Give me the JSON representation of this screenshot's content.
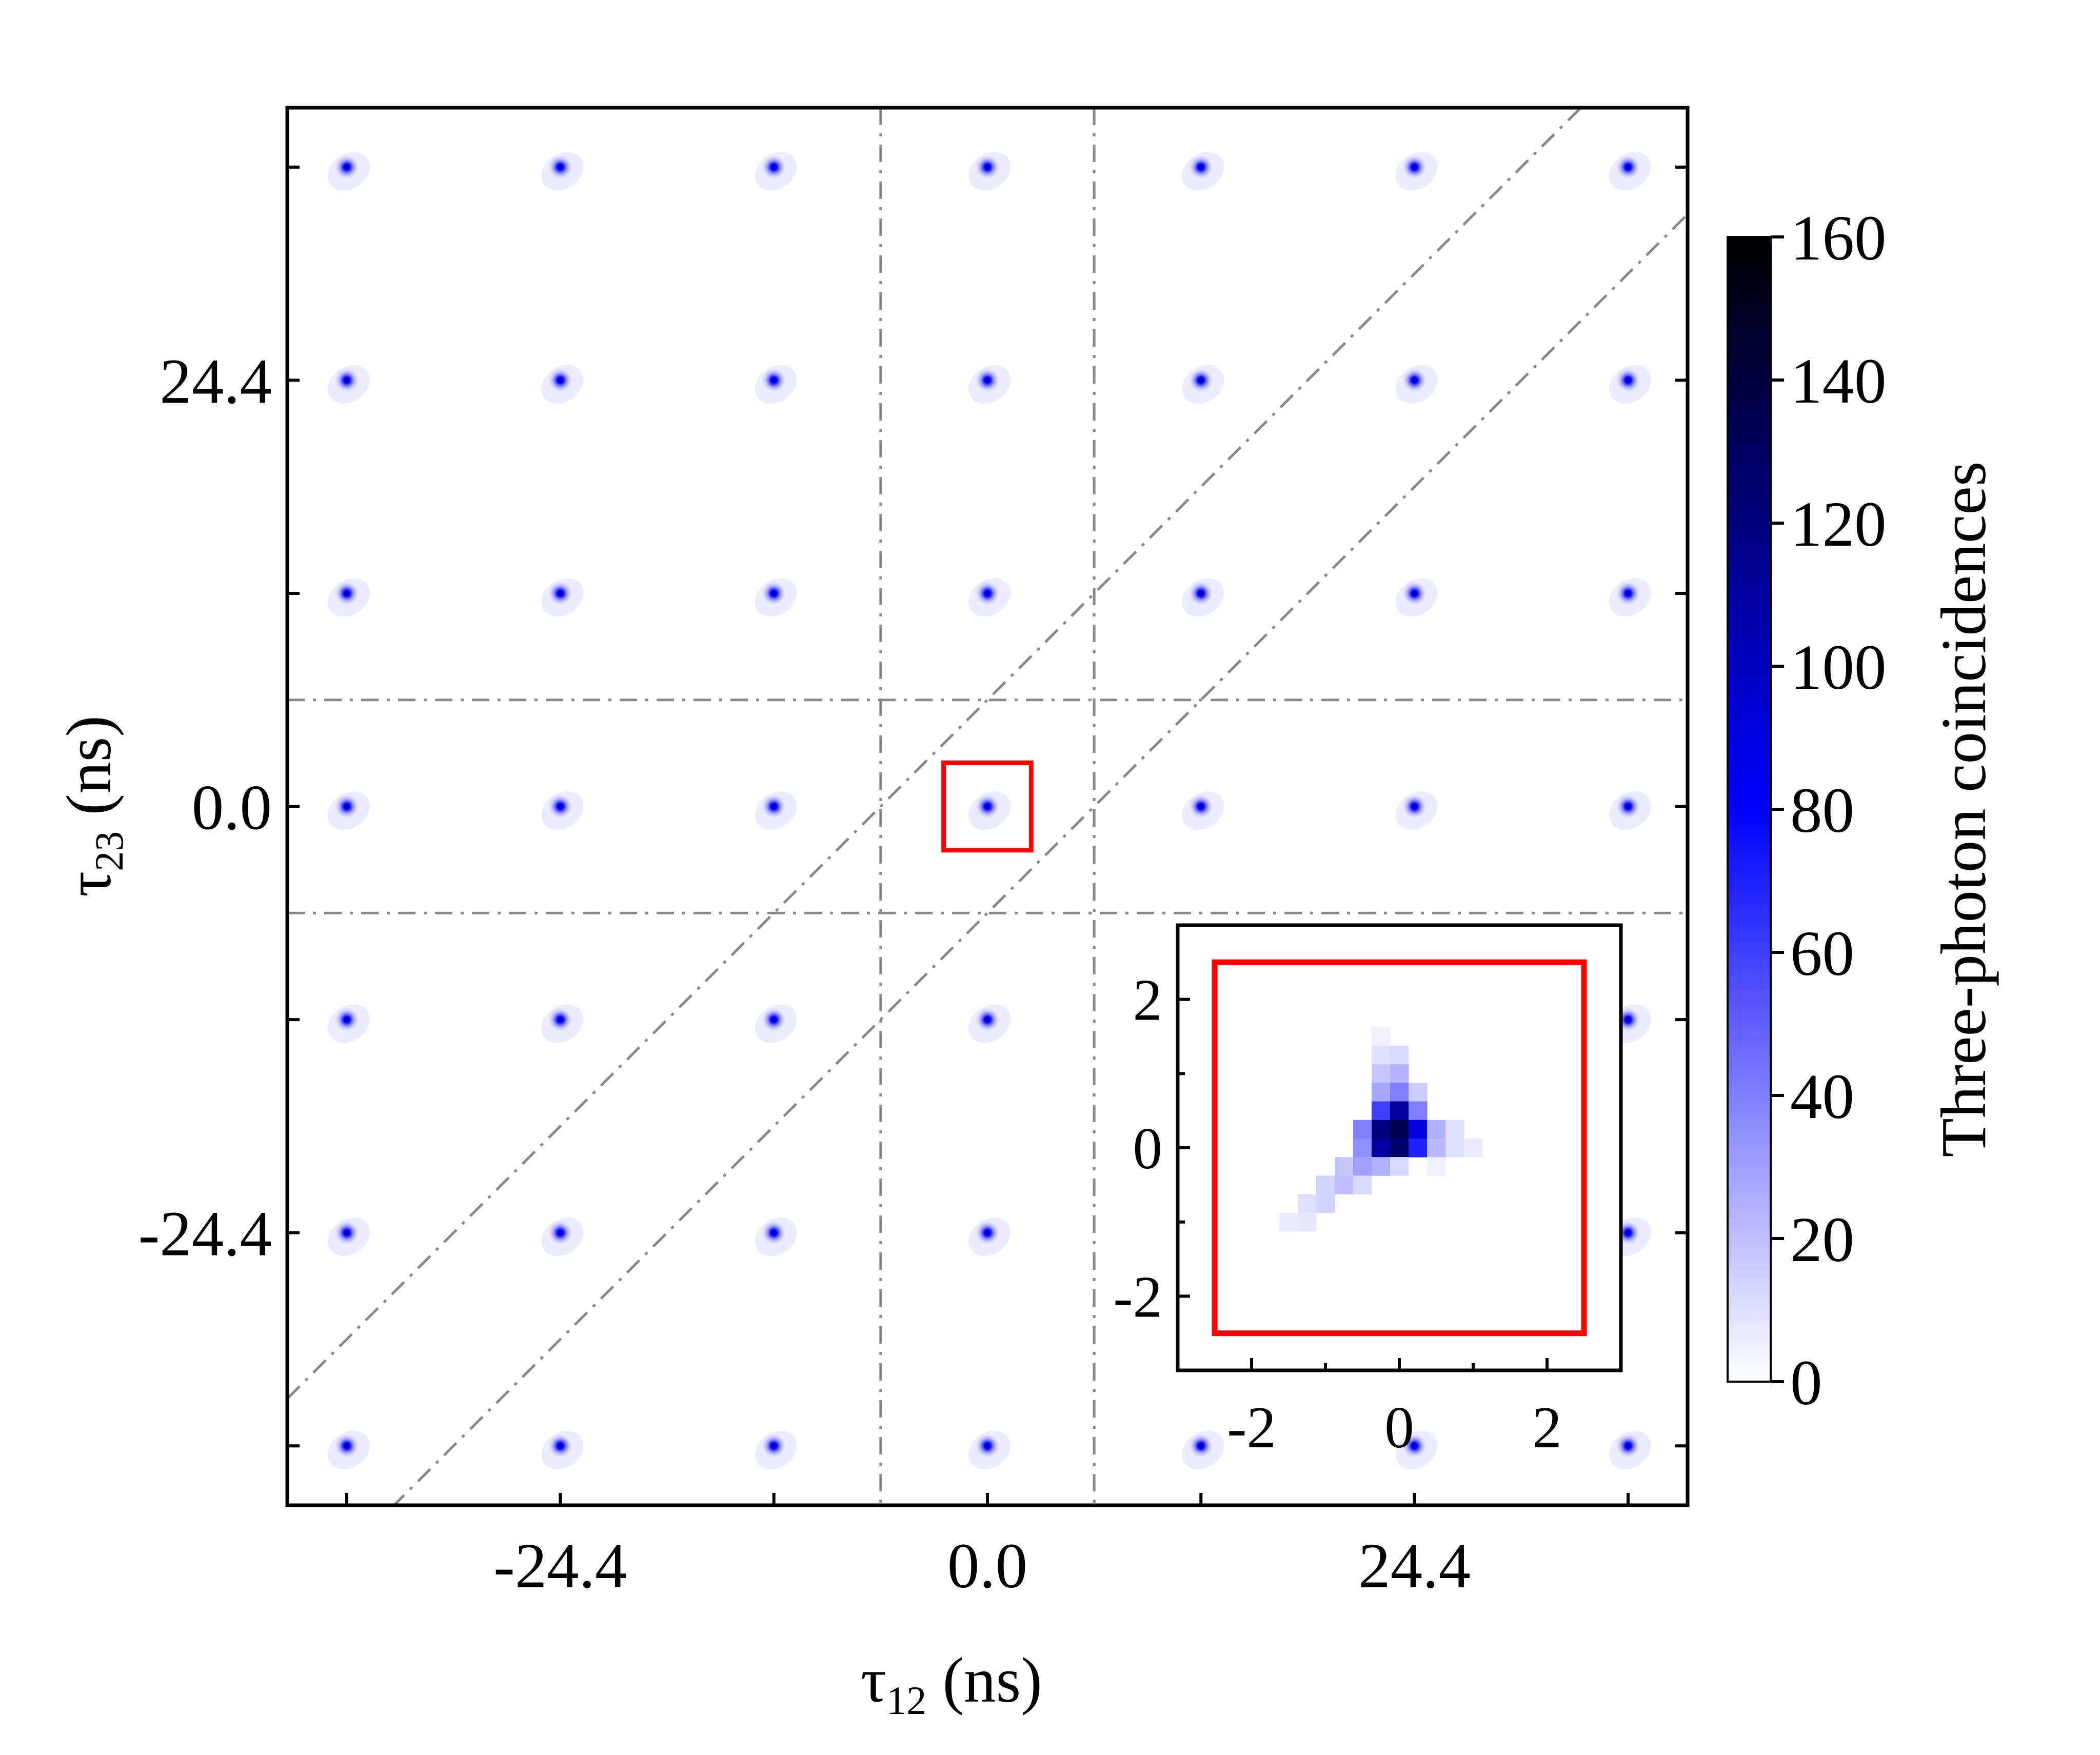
{
  "chart_data": {
    "type": "heatmap",
    "title": "",
    "xlabel": {
      "symbol": "τ",
      "subscript": "12",
      "unit": " (ns)"
    },
    "ylabel": {
      "symbol": "τ",
      "subscript": "23",
      "unit": " (ns)"
    },
    "x_ticks": [
      -24.4,
      0.0,
      24.4
    ],
    "x_tick_labels": [
      "-24.4",
      "0.0",
      "24.4"
    ],
    "y_ticks": [
      -24.4,
      0.0,
      24.4
    ],
    "y_tick_labels": [
      "-24.4",
      "0.0",
      "24.4"
    ],
    "xlim": [
      -40,
      40
    ],
    "ylim": [
      -40,
      40
    ],
    "peak_grid_period": 12.2,
    "peaks_x": [
      -36.6,
      -24.4,
      -12.2,
      0.0,
      12.2,
      24.4,
      36.6
    ],
    "peaks_y": [
      -36.6,
      -24.4,
      -12.2,
      0.0,
      12.2,
      24.4,
      36.6
    ],
    "guide_lines": {
      "vertical_x": [
        -6.1,
        6.1
      ],
      "horizontal_y": [
        -6.1,
        6.1
      ],
      "diagonal_offsets": [
        6.1,
        -6.1
      ]
    },
    "highlight_box": {
      "x": [
        -2.5,
        2.5
      ],
      "y": [
        -2.5,
        2.5
      ],
      "color": "#ff0000"
    },
    "inset": {
      "xlim": [
        -3,
        3
      ],
      "ylim": [
        -3,
        3
      ],
      "x_ticks": [
        -2,
        0,
        2
      ],
      "x_tick_labels": [
        "-2",
        "0",
        "2"
      ],
      "y_ticks": [
        -2,
        0,
        2
      ],
      "y_tick_labels": [
        "-2",
        "0",
        "2"
      ],
      "box": {
        "x": [
          -2.5,
          2.5
        ],
        "y": [
          -2.5,
          2.5
        ],
        "color": "#ff0000"
      },
      "bin_size": 0.25,
      "bins": [
        {
          "x": -0.25,
          "y": 1.25,
          "v": 10
        },
        {
          "x": 0.0,
          "y": 1.25,
          "v": 12
        },
        {
          "x": -0.25,
          "y": 1.0,
          "v": 18
        },
        {
          "x": 0.0,
          "y": 1.0,
          "v": 24
        },
        {
          "x": -0.25,
          "y": 0.75,
          "v": 28
        },
        {
          "x": 0.0,
          "y": 0.75,
          "v": 40
        },
        {
          "x": 0.25,
          "y": 0.75,
          "v": 16
        },
        {
          "x": -0.25,
          "y": 0.5,
          "v": 60
        },
        {
          "x": 0.0,
          "y": 0.5,
          "v": 110
        },
        {
          "x": 0.25,
          "y": 0.5,
          "v": 40
        },
        {
          "x": -0.5,
          "y": 0.25,
          "v": 40
        },
        {
          "x": -0.25,
          "y": 0.25,
          "v": 120
        },
        {
          "x": 0.0,
          "y": 0.25,
          "v": 135
        },
        {
          "x": 0.25,
          "y": 0.25,
          "v": 90
        },
        {
          "x": 0.5,
          "y": 0.25,
          "v": 25
        },
        {
          "x": 0.75,
          "y": 0.25,
          "v": 10
        },
        {
          "x": -0.5,
          "y": 0.0,
          "v": 35
        },
        {
          "x": -0.25,
          "y": 0.0,
          "v": 110
        },
        {
          "x": 0.0,
          "y": 0.0,
          "v": 125
        },
        {
          "x": 0.25,
          "y": 0.0,
          "v": 70
        },
        {
          "x": 0.5,
          "y": 0.0,
          "v": 22
        },
        {
          "x": 0.75,
          "y": 0.0,
          "v": 10
        },
        {
          "x": 1.0,
          "y": 0.0,
          "v": 6
        },
        {
          "x": -0.75,
          "y": -0.25,
          "v": 18
        },
        {
          "x": -0.5,
          "y": -0.25,
          "v": 30
        },
        {
          "x": -0.25,
          "y": -0.25,
          "v": 25
        },
        {
          "x": 0.0,
          "y": -0.25,
          "v": 12
        },
        {
          "x": -1.0,
          "y": -0.5,
          "v": 14
        },
        {
          "x": -0.75,
          "y": -0.5,
          "v": 20
        },
        {
          "x": -0.5,
          "y": -0.5,
          "v": 12
        },
        {
          "x": -1.25,
          "y": -0.75,
          "v": 10
        },
        {
          "x": -1.0,
          "y": -0.75,
          "v": 14
        },
        {
          "x": -1.5,
          "y": -1.0,
          "v": 6
        },
        {
          "x": -1.25,
          "y": -1.0,
          "v": 8
        },
        {
          "x": -0.25,
          "y": 1.5,
          "v": 5
        },
        {
          "x": 0.5,
          "y": -0.25,
          "v": 5
        }
      ]
    },
    "colorbar": {
      "label": "Three-photon coincidences",
      "min": 0,
      "max": 160,
      "ticks": [
        0,
        20,
        40,
        60,
        80,
        100,
        120,
        140,
        160
      ],
      "tick_labels": [
        "0",
        "20",
        "40",
        "60",
        "80",
        "100",
        "120",
        "140",
        "160"
      ],
      "colors": [
        "#ffffff",
        "#0000ff",
        "#000000"
      ]
    }
  }
}
